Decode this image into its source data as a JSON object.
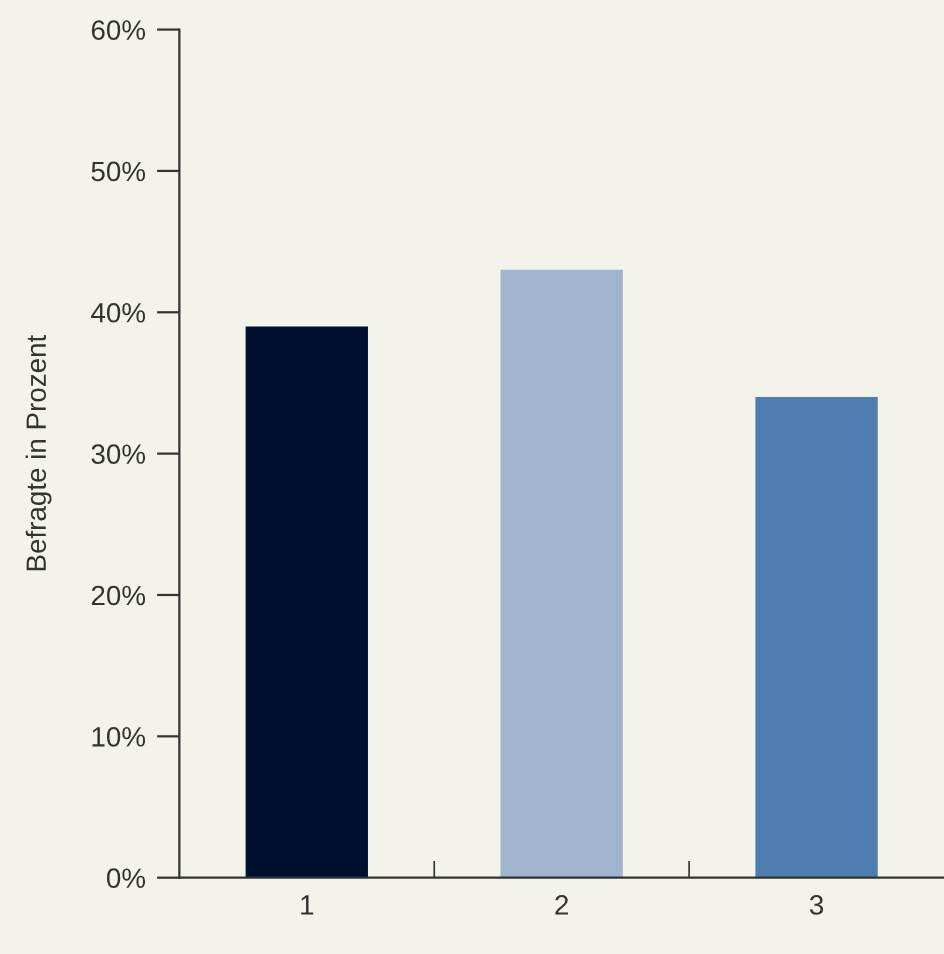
{
  "chart_data": {
    "type": "bar",
    "ylabel": "Befragte in Prozent",
    "categories": [
      "1",
      "2",
      "3"
    ],
    "values": [
      39,
      43,
      34
    ],
    "colors": [
      "#00112f",
      "#a0b4d0",
      "#4e7eaf"
    ],
    "ylim": [
      0,
      60
    ],
    "yticks": [
      {
        "value": 0,
        "label": "0%"
      },
      {
        "value": 10,
        "label": "10%"
      },
      {
        "value": 20,
        "label": "20%"
      },
      {
        "value": 30,
        "label": "30%"
      },
      {
        "value": 40,
        "label": "40%"
      },
      {
        "value": 50,
        "label": "50%"
      },
      {
        "value": 60,
        "label": "60%"
      }
    ],
    "grid": false,
    "legend": false
  }
}
